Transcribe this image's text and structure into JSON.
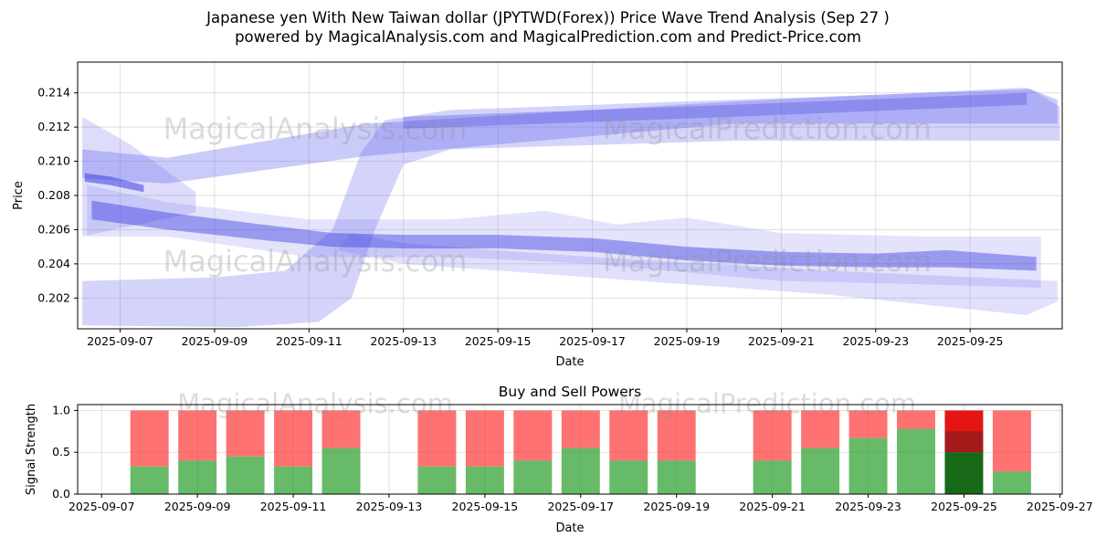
{
  "figure": {
    "title_line1": "Japanese yen With New Taiwan dollar (JPYTWD(Forex)) Price Wave Trend Analysis (Sep 27 )",
    "title_line2": "powered by MagicalAnalysis.com and MagicalPrediction.com and Predict-Price.com",
    "watermark_left": "MagicalAnalysis.com",
    "watermark_right": "MagicalPrediction.com"
  },
  "chart_data": [
    {
      "type": "area",
      "xlabel": "Date",
      "ylabel": "Price",
      "grid": true,
      "x_tick_days": [
        7,
        9,
        11,
        13,
        15,
        17,
        19,
        21,
        23,
        25
      ],
      "x_tick_labels": [
        "2025-09-07",
        "2025-09-09",
        "2025-09-11",
        "2025-09-13",
        "2025-09-15",
        "2025-09-17",
        "2025-09-19",
        "2025-09-21",
        "2025-09-23",
        "2025-09-25"
      ],
      "y_ticks": [
        0.202,
        0.204,
        0.206,
        0.208,
        0.21,
        0.212,
        0.214
      ],
      "y_tick_labels": [
        "0.202",
        "0.204",
        "0.206",
        "0.208",
        "0.210",
        "0.212",
        "0.214"
      ],
      "xlim": [
        6.1,
        26.95
      ],
      "ylim": [
        0.2002,
        0.2158
      ],
      "band_color": "#6666ee",
      "bands": [
        {
          "name": "rise-fan-band",
          "opacity": 0.28,
          "points": [
            [
              6.2,
              0.203
            ],
            [
              9.0,
              0.2032
            ],
            [
              10.5,
              0.2036
            ],
            [
              11.5,
              0.206
            ],
            [
              12.1,
              0.2105
            ],
            [
              12.6,
              0.2124
            ],
            [
              14.0,
              0.213
            ],
            [
              20.0,
              0.2136
            ],
            [
              26.3,
              0.2142
            ],
            [
              26.9,
              0.2132
            ],
            [
              26.9,
              0.2112
            ],
            [
              20.0,
              0.2112
            ],
            [
              14.0,
              0.2107
            ],
            [
              13.0,
              0.2098
            ],
            [
              12.4,
              0.206
            ],
            [
              11.9,
              0.202
            ],
            [
              11.2,
              0.2006
            ],
            [
              9.5,
              0.2003
            ],
            [
              6.2,
              0.2004
            ]
          ]
        },
        {
          "name": "upper-trend-band",
          "opacity": 0.34,
          "points": [
            [
              6.2,
              0.2107
            ],
            [
              8.0,
              0.2102
            ],
            [
              12.2,
              0.2122
            ],
            [
              20.0,
              0.2135
            ],
            [
              26.2,
              0.2143
            ],
            [
              26.85,
              0.2136
            ],
            [
              26.85,
              0.2122
            ],
            [
              20.0,
              0.2122
            ],
            [
              12.2,
              0.2103
            ],
            [
              8.0,
              0.2087
            ],
            [
              6.2,
              0.209
            ]
          ]
        },
        {
          "name": "upper-core-band",
          "opacity": 0.32,
          "color": "#4444dd",
          "points": [
            [
              13.0,
              0.2126
            ],
            [
              20.0,
              0.2133
            ],
            [
              26.2,
              0.214
            ],
            [
              26.2,
              0.2133
            ],
            [
              20.0,
              0.2126
            ],
            [
              13.0,
              0.2119
            ]
          ]
        },
        {
          "name": "bottom-fan-band",
          "opacity": 0.2,
          "points": [
            [
              11.6,
              0.2048
            ],
            [
              13.0,
              0.204
            ],
            [
              17.0,
              0.2032
            ],
            [
              22.0,
              0.2022
            ],
            [
              26.2,
              0.201
            ],
            [
              26.85,
              0.2018
            ],
            [
              26.85,
              0.203
            ],
            [
              22.0,
              0.2036
            ],
            [
              17.0,
              0.2044
            ],
            [
              13.0,
              0.2052
            ],
            [
              11.9,
              0.2058
            ]
          ]
        },
        {
          "name": "left-wedge-band",
          "opacity": 0.22,
          "points": [
            [
              6.2,
              0.2126
            ],
            [
              7.2,
              0.211
            ],
            [
              8.6,
              0.2082
            ],
            [
              8.6,
              0.207
            ],
            [
              7.2,
              0.2062
            ],
            [
              6.2,
              0.2056
            ]
          ]
        },
        {
          "name": "mid-envelope-band",
          "opacity": 0.18,
          "points": [
            [
              6.3,
              0.2086
            ],
            [
              8.0,
              0.2076
            ],
            [
              11.0,
              0.2066
            ],
            [
              14.0,
              0.2066
            ],
            [
              16.0,
              0.2071
            ],
            [
              17.5,
              0.2063
            ],
            [
              19.0,
              0.2067
            ],
            [
              21.0,
              0.2058
            ],
            [
              24.0,
              0.2056
            ],
            [
              26.5,
              0.2056
            ],
            [
              26.5,
              0.2026
            ],
            [
              24.0,
              0.2028
            ],
            [
              21.0,
              0.203
            ],
            [
              17.0,
              0.204
            ],
            [
              14.0,
              0.2044
            ],
            [
              11.0,
              0.2044
            ],
            [
              8.0,
              0.2056
            ],
            [
              6.3,
              0.2056
            ]
          ]
        },
        {
          "name": "mid-core-band",
          "opacity": 0.45,
          "color": "#3e3ee0",
          "points": [
            [
              6.4,
              0.2077
            ],
            [
              8.0,
              0.207
            ],
            [
              10.0,
              0.2063
            ],
            [
              11.5,
              0.2058
            ],
            [
              13.0,
              0.2057
            ],
            [
              15.0,
              0.2057
            ],
            [
              17.0,
              0.2055
            ],
            [
              19.0,
              0.205
            ],
            [
              21.0,
              0.2047
            ],
            [
              23.0,
              0.2046
            ],
            [
              24.5,
              0.2048
            ],
            [
              26.4,
              0.2044
            ],
            [
              26.4,
              0.2036
            ],
            [
              24.5,
              0.2038
            ],
            [
              23.0,
              0.2038
            ],
            [
              21.0,
              0.2039
            ],
            [
              19.0,
              0.2042
            ],
            [
              17.0,
              0.2047
            ],
            [
              15.0,
              0.2049
            ],
            [
              13.0,
              0.2049
            ],
            [
              11.5,
              0.205
            ],
            [
              10.0,
              0.2054
            ],
            [
              8.0,
              0.206
            ],
            [
              6.4,
              0.2066
            ]
          ]
        },
        {
          "name": "left-dark-segment",
          "opacity": 0.55,
          "color": "#3e3ee0",
          "points": [
            [
              6.25,
              0.2093
            ],
            [
              6.8,
              0.2091
            ],
            [
              7.5,
              0.2086
            ],
            [
              7.5,
              0.2082
            ],
            [
              6.8,
              0.2086
            ],
            [
              6.25,
              0.2088
            ]
          ]
        }
      ]
    },
    {
      "type": "bar",
      "title": "Buy and Sell Powers",
      "xlabel": "Date",
      "ylabel": "Signal Strength",
      "grid": true,
      "x_tick_days": [
        7,
        9,
        11,
        13,
        15,
        17,
        19,
        21,
        23,
        25,
        27
      ],
      "x_tick_labels": [
        "2025-09-07",
        "2025-09-09",
        "2025-09-11",
        "2025-09-13",
        "2025-09-15",
        "2025-09-17",
        "2025-09-19",
        "2025-09-21",
        "2025-09-23",
        "2025-09-25",
        "2025-09-27"
      ],
      "y_ticks": [
        0.0,
        0.5,
        1.0
      ],
      "y_tick_labels": [
        "0.0",
        "0.5",
        "1.0"
      ],
      "xlim": [
        6.5,
        27.05
      ],
      "ylim": [
        0,
        1.07
      ],
      "bar_width_days": 0.8,
      "colors": {
        "buy": "#2da02d",
        "sell": "#ff3b3b",
        "buy_solid": "#176917",
        "sell_solid": "#e51515",
        "sell_solid_dark": "#9c1b1b"
      },
      "bars": [
        {
          "date": "2025-09-08",
          "day": 8,
          "buy": 0.33,
          "sell_to": 1.0
        },
        {
          "date": "2025-09-09",
          "day": 9,
          "buy": 0.4,
          "sell_to": 1.0
        },
        {
          "date": "2025-09-10",
          "day": 10,
          "buy": 0.45,
          "sell_to": 1.0
        },
        {
          "date": "2025-09-11",
          "day": 11,
          "buy": 0.33,
          "sell_to": 1.0
        },
        {
          "date": "2025-09-12",
          "day": 12,
          "buy": 0.55,
          "sell_to": 1.0
        },
        {
          "date": "2025-09-14",
          "day": 14,
          "buy": 0.33,
          "sell_to": 1.0
        },
        {
          "date": "2025-09-15",
          "day": 15,
          "buy": 0.33,
          "sell_to": 1.0
        },
        {
          "date": "2025-09-16",
          "day": 16,
          "buy": 0.4,
          "sell_to": 1.0
        },
        {
          "date": "2025-09-17",
          "day": 17,
          "buy": 0.55,
          "sell_to": 1.0
        },
        {
          "date": "2025-09-18",
          "day": 18,
          "buy": 0.4,
          "sell_to": 1.0
        },
        {
          "date": "2025-09-19",
          "day": 19,
          "buy": 0.4,
          "sell_to": 1.0
        },
        {
          "date": "2025-09-21",
          "day": 21,
          "buy": 0.4,
          "sell_to": 1.0
        },
        {
          "date": "2025-09-22",
          "day": 22,
          "buy": 0.55,
          "sell_to": 1.0
        },
        {
          "date": "2025-09-23",
          "day": 23,
          "buy": 0.67,
          "sell_to": 1.0
        },
        {
          "date": "2025-09-24",
          "day": 24,
          "buy": 0.78,
          "sell_to": 1.0
        },
        {
          "date": "2025-09-25",
          "day": 25,
          "buy": 0.5,
          "sell_to": 1.0,
          "solid": true
        },
        {
          "date": "2025-09-26",
          "day": 26,
          "buy": 0.27,
          "sell_to": 1.0
        }
      ]
    }
  ]
}
